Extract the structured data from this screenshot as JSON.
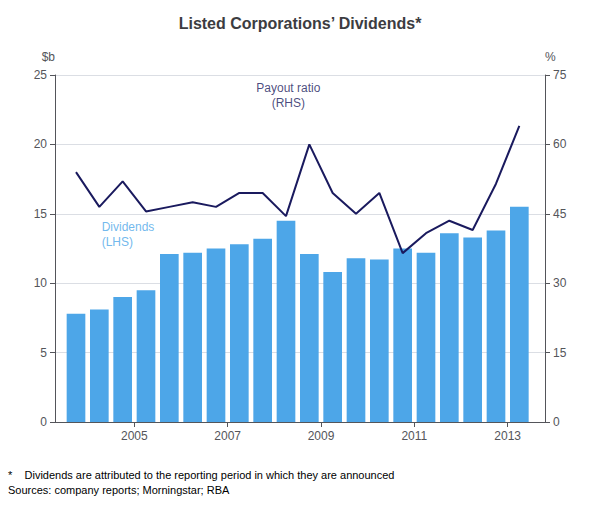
{
  "chart_data": {
    "type": "bar",
    "title": "Listed Corporations’ Dividends*",
    "ylabel": "$b",
    "y2label": "%",
    "footnote": "*    Dividends are attributed to the reporting period in which they are announced\nSources: company reports; Morningstar; RBA",
    "x": [
      2003.75,
      2004.25,
      2004.75,
      2005.25,
      2005.75,
      2006.25,
      2006.75,
      2007.25,
      2007.75,
      2008.25,
      2008.75,
      2009.25,
      2009.75,
      2010.25,
      2010.75,
      2011.25,
      2011.75,
      2012.25,
      2012.75,
      2013.25
    ],
    "series": [
      {
        "type": "bar",
        "color": "#4da6e8",
        "values": [
          7.8,
          8.1,
          9.0,
          9.5,
          12.1,
          12.2,
          12.5,
          12.8,
          13.2,
          14.5,
          12.1,
          10.8,
          11.8,
          11.7,
          12.5,
          12.2,
          13.6,
          13.3,
          13.8,
          15.5
        ]
      },
      {
        "type": "line",
        "color": "#1a1a5e",
        "axis": "y2",
        "values": [
          54.0,
          46.5,
          52.0,
          45.5,
          46.5,
          47.5,
          46.5,
          49.5,
          49.5,
          44.5,
          60.0,
          49.5,
          45.0,
          49.5,
          36.5,
          40.8,
          43.5,
          41.5,
          51.5,
          64.0
        ]
      }
    ],
    "annotations": [
      {
        "text": "Dividends\n(LHS)",
        "x": 2004.3,
        "y": 13.5,
        "color": "#4da6e8"
      },
      {
        "text": "Payout ratio\n(RHS)",
        "x": 2008.3,
        "y": 23.5,
        "color": "#1a1a5e"
      }
    ],
    "xlim": [
      2003.3,
      2013.8
    ],
    "xticks": [
      2005,
      2007,
      2009,
      2011,
      2013
    ],
    "ylim": [
      0,
      25
    ],
    "yticks": [
      0,
      5,
      10,
      15,
      20,
      25
    ],
    "y2lim": [
      0,
      75
    ],
    "y2ticks": [
      0,
      15,
      30,
      45,
      60,
      75
    ],
    "grid": true
  }
}
